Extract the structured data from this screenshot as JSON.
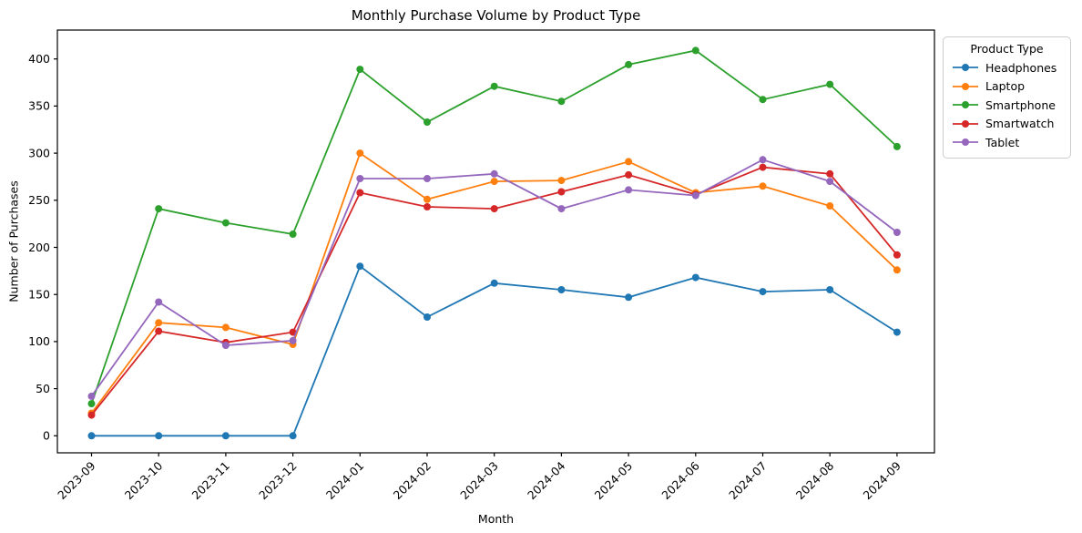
{
  "chart_data": {
    "type": "line",
    "title": "Monthly Purchase Volume by Product Type",
    "xlabel": "Month",
    "ylabel": "Number of Purchases",
    "categories": [
      "2023-09",
      "2023-10",
      "2023-11",
      "2023-12",
      "2024-01",
      "2024-02",
      "2024-03",
      "2024-04",
      "2024-05",
      "2024-06",
      "2024-07",
      "2024-08",
      "2024-09"
    ],
    "yticks": [
      0,
      50,
      100,
      150,
      200,
      250,
      300,
      350,
      400
    ],
    "ylim": [
      -20,
      430
    ],
    "grid": false,
    "marker": "circle",
    "legend": {
      "title": "Product Type",
      "position": "outside-top-right"
    },
    "series": [
      {
        "name": "Headphones",
        "color": "#1f77b4",
        "values": [
          0,
          0,
          0,
          0,
          180,
          126,
          162,
          155,
          147,
          168,
          153,
          155,
          110
        ]
      },
      {
        "name": "Laptop",
        "color": "#ff7f0e",
        "values": [
          24,
          120,
          115,
          97,
          300,
          251,
          270,
          271,
          291,
          258,
          265,
          244,
          176
        ]
      },
      {
        "name": "Smartphone",
        "color": "#2ca02c",
        "values": [
          34,
          241,
          226,
          214,
          389,
          333,
          371,
          355,
          394,
          409,
          357,
          373,
          307
        ]
      },
      {
        "name": "Smartwatch",
        "color": "#d62728",
        "values": [
          22,
          111,
          99,
          110,
          258,
          243,
          241,
          259,
          277,
          256,
          285,
          278,
          192
        ]
      },
      {
        "name": "Tablet",
        "color": "#9467bd",
        "values": [
          42,
          142,
          96,
          101,
          273,
          273,
          278,
          241,
          261,
          255,
          293,
          270,
          216
        ]
      }
    ],
    "axis_color": "#000000",
    "background_color": "#ffffff"
  }
}
